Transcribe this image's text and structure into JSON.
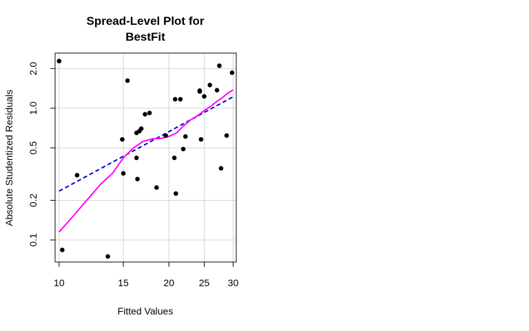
{
  "chart_data": {
    "type": "scatter",
    "title": [
      "Spread-Level Plot for",
      "BestFit"
    ],
    "xlabel": "Fitted Values",
    "ylabel": "Absolute Studentized Residuals",
    "x_scale": "log",
    "y_scale": "log",
    "xlim": [
      9.75,
      30.6
    ],
    "ylim": [
      0.068,
      2.62
    ],
    "x_ticks": [
      10,
      15,
      20,
      25,
      30
    ],
    "y_ticks": [
      0.1,
      0.2,
      0.5,
      1.0,
      2.0
    ],
    "x_tick_labels": [
      "10",
      "15",
      "20",
      "25",
      "30"
    ],
    "y_tick_labels": [
      "0.1",
      "0.2",
      "0.5",
      "1.0",
      "2.0"
    ],
    "grid": true,
    "points": [
      {
        "x": 10.0,
        "y": 2.28
      },
      {
        "x": 10.2,
        "y": 0.084
      },
      {
        "x": 11.2,
        "y": 0.31
      },
      {
        "x": 13.6,
        "y": 0.075
      },
      {
        "x": 14.9,
        "y": 0.58
      },
      {
        "x": 15.0,
        "y": 0.32
      },
      {
        "x": 15.4,
        "y": 1.62
      },
      {
        "x": 16.3,
        "y": 0.42
      },
      {
        "x": 16.4,
        "y": 0.29
      },
      {
        "x": 16.3,
        "y": 0.65
      },
      {
        "x": 16.6,
        "y": 0.67
      },
      {
        "x": 16.8,
        "y": 0.7
      },
      {
        "x": 17.2,
        "y": 0.9
      },
      {
        "x": 17.7,
        "y": 0.92
      },
      {
        "x": 18.5,
        "y": 0.25
      },
      {
        "x": 19.6,
        "y": 0.62
      },
      {
        "x": 20.7,
        "y": 0.42
      },
      {
        "x": 20.8,
        "y": 1.17
      },
      {
        "x": 20.9,
        "y": 0.225
      },
      {
        "x": 21.5,
        "y": 1.17
      },
      {
        "x": 21.9,
        "y": 0.49
      },
      {
        "x": 22.2,
        "y": 0.61
      },
      {
        "x": 24.3,
        "y": 1.36
      },
      {
        "x": 24.3,
        "y": 1.34
      },
      {
        "x": 24.5,
        "y": 0.58
      },
      {
        "x": 25.0,
        "y": 1.23
      },
      {
        "x": 25.9,
        "y": 1.5
      },
      {
        "x": 27.1,
        "y": 1.37
      },
      {
        "x": 27.5,
        "y": 2.1
      },
      {
        "x": 27.8,
        "y": 0.35
      },
      {
        "x": 28.8,
        "y": 0.62
      },
      {
        "x": 29.8,
        "y": 1.86
      }
    ],
    "series": [
      {
        "style": "dashed",
        "color": "#0000cc",
        "x": [
          10.0,
          30.0
        ],
        "y": [
          0.235,
          1.22
        ]
      },
      {
        "style": "solid",
        "color": "#ff00ff",
        "x": [
          10.0,
          11.0,
          12.0,
          13.0,
          14.0,
          15.0,
          16.0,
          17.0,
          18.0,
          19.0,
          20.0,
          21.0,
          22.0,
          23.0,
          24.0,
          25.0,
          26.0,
          27.0,
          28.0,
          29.0,
          30.0
        ],
        "y": [
          0.115,
          0.155,
          0.205,
          0.265,
          0.32,
          0.42,
          0.5,
          0.56,
          0.585,
          0.59,
          0.61,
          0.65,
          0.74,
          0.82,
          0.88,
          0.96,
          1.03,
          1.12,
          1.2,
          1.3,
          1.38
        ]
      }
    ],
    "colors": {
      "points": "#000000",
      "grid": "#d3d3d3"
    }
  }
}
